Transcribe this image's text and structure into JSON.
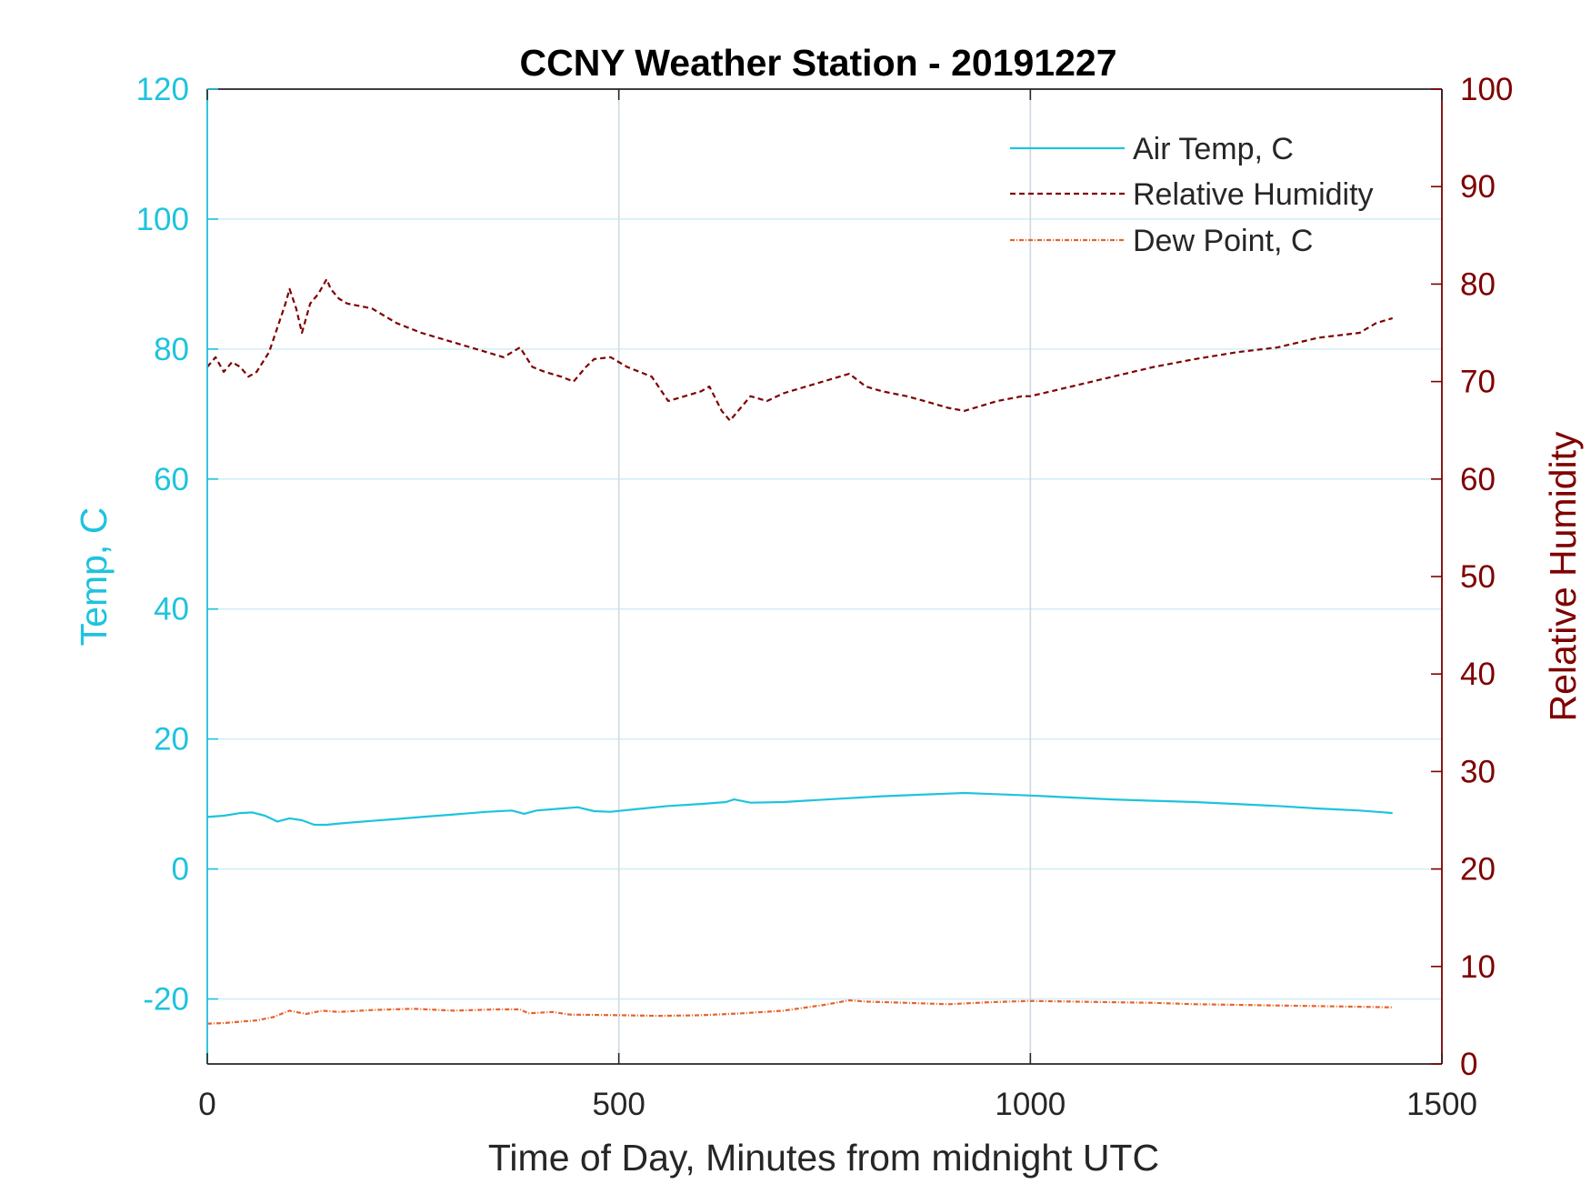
{
  "chart_data": {
    "type": "line",
    "title": "CCNY Weather Station - 20191227",
    "xlabel": "Time of Day, Minutes from midnight UTC",
    "xlim": [
      0,
      1500
    ],
    "xticks": [
      0,
      500,
      1000,
      1500
    ],
    "ylabel_left": "Temp, C",
    "ylim_left": [
      -30,
      120
    ],
    "yticks_left": [
      -20,
      0,
      20,
      40,
      60,
      80,
      100,
      120
    ],
    "ylabel_right": "Relative Humidity",
    "ylim_right": [
      0,
      100
    ],
    "yticks_right": [
      0,
      10,
      20,
      30,
      40,
      50,
      60,
      70,
      80,
      90,
      100
    ],
    "grid": true,
    "legend_position": "top-right",
    "colors": {
      "left_axis": "#1ec3de",
      "right_axis": "#7f0000",
      "air_temp": "#1ec3de",
      "humidity": "#7f0000",
      "dew_point": "#e4632c",
      "grid_major": "#d4eef5",
      "grid_vertical": "#cfd7e3",
      "box": "#262626"
    },
    "series": [
      {
        "name": "Air Temp, C",
        "axis": "left",
        "style": "solid",
        "x": [
          0,
          20,
          40,
          55,
          70,
          85,
          100,
          115,
          130,
          145,
          160,
          180,
          200,
          230,
          260,
          300,
          340,
          370,
          385,
          400,
          430,
          450,
          470,
          490,
          520,
          560,
          600,
          630,
          640,
          660,
          700,
          740,
          780,
          820,
          860,
          900,
          920,
          940,
          1000,
          1050,
          1100,
          1150,
          1200,
          1250,
          1300,
          1350,
          1400,
          1440
        ],
        "values": [
          8.0,
          8.2,
          8.6,
          8.7,
          8.2,
          7.3,
          7.8,
          7.5,
          6.8,
          6.8,
          7.0,
          7.2,
          7.4,
          7.7,
          8.0,
          8.4,
          8.8,
          9.0,
          8.5,
          9.0,
          9.3,
          9.5,
          8.9,
          8.8,
          9.2,
          9.7,
          10.0,
          10.3,
          10.7,
          10.2,
          10.3,
          10.6,
          10.9,
          11.2,
          11.4,
          11.6,
          11.7,
          11.6,
          11.3,
          11.0,
          10.7,
          10.5,
          10.3,
          10.0,
          9.7,
          9.3,
          9.0,
          8.6
        ]
      },
      {
        "name": "Relative Humidity",
        "axis": "right",
        "style": "dashed",
        "x": [
          0,
          10,
          20,
          30,
          40,
          50,
          60,
          75,
          85,
          95,
          100,
          108,
          115,
          125,
          135,
          145,
          150,
          160,
          170,
          200,
          230,
          260,
          300,
          340,
          360,
          380,
          395,
          410,
          430,
          445,
          460,
          470,
          490,
          510,
          540,
          560,
          580,
          600,
          610,
          625,
          635,
          650,
          660,
          680,
          700,
          720,
          740,
          760,
          780,
          800,
          820,
          850,
          880,
          900,
          920,
          940,
          960,
          990,
          1000,
          1050,
          1100,
          1150,
          1200,
          1250,
          1300,
          1350,
          1400,
          1420,
          1440
        ],
        "values": [
          71.5,
          72.5,
          71.0,
          72.0,
          71.5,
          70.5,
          71.0,
          73.0,
          75.5,
          78.0,
          79.5,
          77.5,
          75.0,
          78.0,
          79.0,
          80.5,
          79.5,
          78.5,
          78.0,
          77.5,
          76.0,
          75.0,
          74.0,
          73.0,
          72.5,
          73.5,
          71.5,
          71.0,
          70.5,
          70.0,
          71.5,
          72.3,
          72.5,
          71.5,
          70.5,
          68.0,
          68.5,
          69.0,
          69.5,
          67.0,
          66.0,
          67.5,
          68.5,
          68.0,
          68.8,
          69.3,
          69.8,
          70.3,
          70.8,
          69.5,
          69.0,
          68.5,
          67.8,
          67.3,
          67.0,
          67.5,
          68.0,
          68.5,
          68.5,
          69.5,
          70.5,
          71.5,
          72.3,
          73.0,
          73.5,
          74.5,
          75.0,
          76.0,
          76.5
        ]
      },
      {
        "name": "Dew Point, C",
        "axis": "left",
        "style": "dash-dot",
        "x": [
          0,
          20,
          40,
          60,
          80,
          100,
          120,
          140,
          160,
          200,
          250,
          300,
          350,
          380,
          390,
          420,
          440,
          500,
          550,
          600,
          650,
          700,
          750,
          780,
          800,
          850,
          900,
          950,
          1000,
          1050,
          1100,
          1150,
          1200,
          1250,
          1300,
          1350,
          1400,
          1440
        ],
        "values": [
          -23.8,
          -23.7,
          -23.5,
          -23.3,
          -22.8,
          -21.8,
          -22.3,
          -21.8,
          -22.0,
          -21.7,
          -21.5,
          -21.8,
          -21.6,
          -21.6,
          -22.2,
          -22.0,
          -22.4,
          -22.5,
          -22.6,
          -22.5,
          -22.2,
          -21.8,
          -20.9,
          -20.2,
          -20.4,
          -20.6,
          -20.8,
          -20.5,
          -20.3,
          -20.4,
          -20.5,
          -20.6,
          -20.8,
          -20.9,
          -21.0,
          -21.1,
          -21.2,
          -21.3
        ]
      }
    ]
  }
}
